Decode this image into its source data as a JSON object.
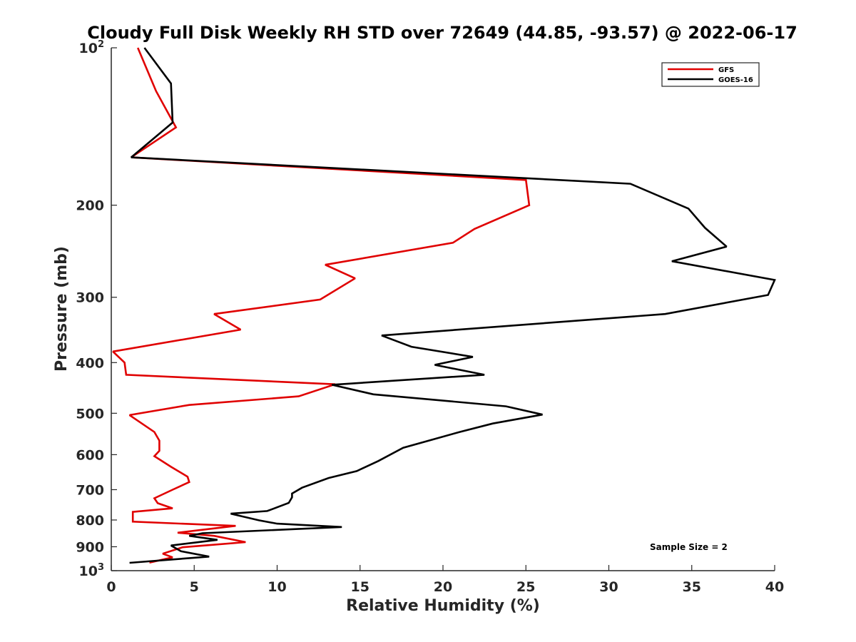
{
  "colors": {
    "gfs": "#e00000",
    "goes": "#000000",
    "axis": "#262626"
  },
  "chart_data": {
    "type": "line",
    "title": "Cloudy Full Disk Weekly RH STD over 72649 (44.85, -93.57) @ 2022-06-17",
    "xlabel": "Relative Humidity (%)",
    "ylabel": "Pressure (mb)",
    "xlim": [
      0,
      40
    ],
    "ylim": [
      100,
      1000
    ],
    "y_scale": "log",
    "y_reversed": true,
    "x_ticks": [
      "0",
      "5",
      "10",
      "15",
      "20",
      "25",
      "30",
      "35",
      "40"
    ],
    "y_ticks": [
      {
        "value": 100,
        "label": "10",
        "exp": "2"
      },
      {
        "value": 200,
        "label": "200"
      },
      {
        "value": 300,
        "label": "300"
      },
      {
        "value": 400,
        "label": "400"
      },
      {
        "value": 500,
        "label": "500"
      },
      {
        "value": 600,
        "label": "600"
      },
      {
        "value": 700,
        "label": "700"
      },
      {
        "value": 800,
        "label": "800"
      },
      {
        "value": 900,
        "label": "900"
      },
      {
        "value": 1000,
        "label": "10",
        "exp": "3"
      }
    ],
    "legend_position": "top-right",
    "annotation": "Sample Size = 2",
    "series": [
      {
        "name": "GFS",
        "color": "#e00000",
        "points": [
          [
            1.6,
            100
          ],
          [
            2.7,
            121
          ],
          [
            3.9,
            142
          ],
          [
            1.2,
            162
          ],
          [
            25.0,
            179
          ],
          [
            25.2,
            200
          ],
          [
            21.9,
            222
          ],
          [
            20.6,
            236
          ],
          [
            12.9,
            260
          ],
          [
            14.7,
            276
          ],
          [
            12.6,
            303
          ],
          [
            6.2,
            323
          ],
          [
            7.8,
            346
          ],
          [
            0.1,
            381
          ],
          [
            0.8,
            400
          ],
          [
            0.9,
            422
          ],
          [
            13.5,
            440
          ],
          [
            11.3,
            464
          ],
          [
            4.7,
            482
          ],
          [
            1.1,
            504
          ],
          [
            2.6,
            543
          ],
          [
            2.9,
            564
          ],
          [
            2.9,
            590
          ],
          [
            2.6,
            604
          ],
          [
            3.6,
            633
          ],
          [
            4.6,
            661
          ],
          [
            4.7,
            677
          ],
          [
            3.7,
            700
          ],
          [
            2.6,
            727
          ],
          [
            2.8,
            743
          ],
          [
            3.7,
            760
          ],
          [
            1.3,
            772
          ],
          [
            1.3,
            806
          ],
          [
            7.5,
            821
          ],
          [
            4.0,
            846
          ],
          [
            6.2,
            858
          ],
          [
            8.1,
            882
          ],
          [
            4.3,
            902
          ],
          [
            3.1,
            928
          ],
          [
            3.7,
            943
          ],
          [
            2.3,
            965
          ]
        ]
      },
      {
        "name": "GOES-16",
        "color": "#000000",
        "points": [
          [
            2.0,
            100
          ],
          [
            3.6,
            117
          ],
          [
            3.7,
            139
          ],
          [
            1.2,
            162
          ],
          [
            31.3,
            182
          ],
          [
            34.8,
            203
          ],
          [
            35.8,
            221
          ],
          [
            37.1,
            240
          ],
          [
            33.8,
            256
          ],
          [
            40.0,
            278
          ],
          [
            39.6,
            297
          ],
          [
            33.4,
            323
          ],
          [
            16.3,
            355
          ],
          [
            18.1,
            373
          ],
          [
            21.8,
            390
          ],
          [
            19.5,
            404
          ],
          [
            22.5,
            422
          ],
          [
            13.3,
            441
          ],
          [
            15.8,
            460
          ],
          [
            23.8,
            485
          ],
          [
            26.0,
            503
          ],
          [
            23.0,
            523
          ],
          [
            21.0,
            543
          ],
          [
            19.5,
            560
          ],
          [
            17.6,
            582
          ],
          [
            16.1,
            617
          ],
          [
            14.8,
            645
          ],
          [
            13.1,
            665
          ],
          [
            11.5,
            694
          ],
          [
            10.9,
            712
          ],
          [
            10.9,
            724
          ],
          [
            10.7,
            742
          ],
          [
            9.4,
            769
          ],
          [
            7.2,
            778
          ],
          [
            8.9,
            801
          ],
          [
            10.0,
            813
          ],
          [
            13.9,
            825
          ],
          [
            5.5,
            848
          ],
          [
            4.7,
            858
          ],
          [
            6.4,
            873
          ],
          [
            3.6,
            895
          ],
          [
            4.2,
            918
          ],
          [
            5.9,
            940
          ],
          [
            1.1,
            966
          ]
        ]
      }
    ]
  }
}
